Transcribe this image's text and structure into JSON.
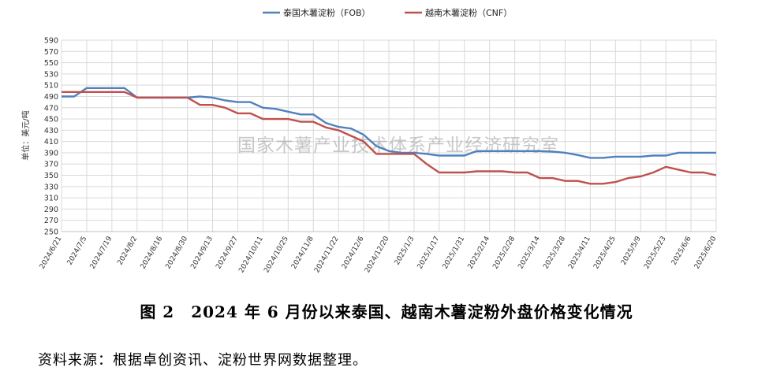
{
  "caption": "图 2　2024 年 6 月份以来泰国、越南木薯淀粉外盘价格变化情况",
  "source_note": "资料来源：根据卓创资讯、淀粉世界网数据整理。",
  "watermark": "国家木薯产业技术体系产业经济研究室",
  "chart_data": {
    "type": "line",
    "ylabel": "单位：美元/吨",
    "ylim": [
      250,
      590
    ],
    "ytick_step": 20,
    "grid": true,
    "legend_position": "top-center",
    "x_tick_labels": [
      "2024/6/21",
      "2024/7/5",
      "2024/7/19",
      "2024/8/2",
      "2024/8/16",
      "2024/8/30",
      "2024/9/13",
      "2024/9/27",
      "2024/10/11",
      "2024/10/25",
      "2024/11/8",
      "2024/11/22",
      "2024/12/6",
      "2024/12/20",
      "2025/1/3",
      "2025/1/17",
      "2025/1/31",
      "2025/2/14",
      "2025/2/28",
      "2025/3/14",
      "2025/3/28",
      "2025/4/11",
      "2025/4/25",
      "2025/5/9",
      "2025/5/23",
      "2025/6/6",
      "2025/6/20"
    ],
    "x": [
      "2024/6/21",
      "2024/6/28",
      "2024/7/5",
      "2024/7/12",
      "2024/7/19",
      "2024/7/26",
      "2024/8/2",
      "2024/8/9",
      "2024/8/16",
      "2024/8/23",
      "2024/8/30",
      "2024/9/6",
      "2024/9/13",
      "2024/9/20",
      "2024/9/27",
      "2024/10/4",
      "2024/10/11",
      "2024/10/18",
      "2024/10/25",
      "2024/11/1",
      "2024/11/8",
      "2024/11/15",
      "2024/11/22",
      "2024/11/29",
      "2024/12/6",
      "2024/12/13",
      "2024/12/20",
      "2024/12/27",
      "2025/1/3",
      "2025/1/10",
      "2025/1/17",
      "2025/1/24",
      "2025/1/31",
      "2025/2/7",
      "2025/2/14",
      "2025/2/21",
      "2025/2/28",
      "2025/3/7",
      "2025/3/14",
      "2025/3/21",
      "2025/3/28",
      "2025/4/4",
      "2025/4/11",
      "2025/4/18",
      "2025/4/25",
      "2025/5/2",
      "2025/5/9",
      "2025/5/16",
      "2025/5/23",
      "2025/5/30",
      "2025/6/6",
      "2025/6/13",
      "2025/6/20"
    ],
    "series": [
      {
        "name": "泰国木薯淀粉（FOB）",
        "color": "#4f81bd",
        "values": [
          490,
          490,
          505,
          505,
          505,
          505,
          488,
          488,
          488,
          488,
          488,
          490,
          488,
          483,
          480,
          480,
          470,
          468,
          463,
          458,
          458,
          443,
          436,
          433,
          422,
          402,
          393,
          390,
          390,
          388,
          385,
          385,
          385,
          393,
          393,
          393,
          393,
          393,
          393,
          392,
          390,
          386,
          381,
          381,
          383,
          383,
          383,
          385,
          385,
          390,
          390,
          390,
          390
        ]
      },
      {
        "name": "越南木薯淀粉（CNF）",
        "color": "#c0504d",
        "values": [
          498,
          498,
          498,
          498,
          498,
          498,
          488,
          488,
          488,
          488,
          488,
          475,
          475,
          470,
          460,
          460,
          450,
          450,
          450,
          445,
          445,
          435,
          430,
          420,
          410,
          388,
          388,
          388,
          388,
          370,
          355,
          355,
          355,
          357,
          357,
          357,
          355,
          355,
          345,
          345,
          340,
          340,
          335,
          335,
          338,
          345,
          348,
          355,
          365,
          360,
          355,
          355,
          350
        ]
      }
    ]
  }
}
